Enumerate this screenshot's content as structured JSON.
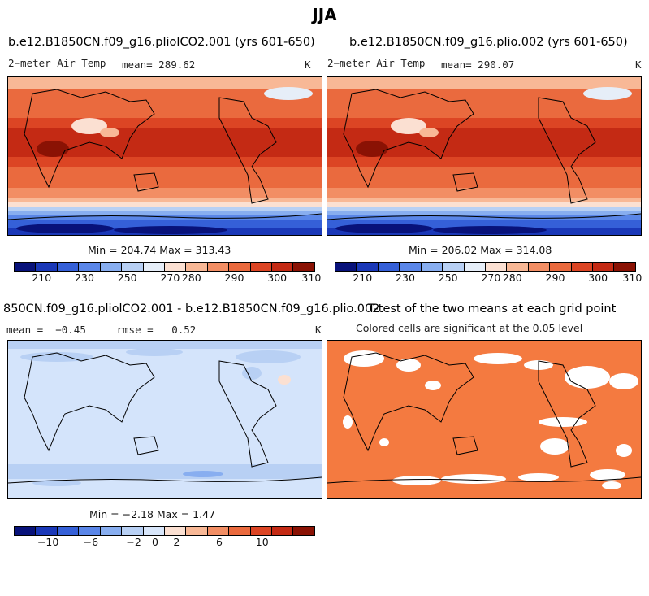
{
  "title": "JJA",
  "panels": [
    {
      "case": "b.e12.B1850CN.f09_g16.pliolCO2.001 (yrs 601-650)",
      "variable": "2−meter Air Temp",
      "mean_label": "mean=",
      "mean_value": "289.62",
      "units": "K",
      "minmax": "Min = 204.74 Max = 313.43",
      "colorbar_ticks": [
        "210",
        "230",
        "250",
        "270",
        "280",
        "290",
        "300",
        "310"
      ]
    },
    {
      "case": "b.e12.B1850CN.f09_g16.plio.002 (yrs 601-650)",
      "variable": "2−meter Air Temp",
      "mean_label": "mean=",
      "mean_value": "290.07",
      "units": "K",
      "minmax": "Min = 206.02 Max = 314.08",
      "colorbar_ticks": [
        "210",
        "230",
        "250",
        "270",
        "280",
        "290",
        "300",
        "310"
      ]
    },
    {
      "case": "850CN.f09_g16.pliolCO2.001 - b.e12.B1850CN.f09_g16.plio.002",
      "mean_label": "mean =",
      "mean_value": "−0.45",
      "rmse_label": "rmse =",
      "rmse_value": "0.52",
      "units": "K",
      "minmax": "Min =  −2.18 Max =   1.47",
      "colorbar_ticks": [
        "−10",
        "−6",
        "−2",
        "0",
        "2",
        "6",
        "10"
      ]
    },
    {
      "title": "T-test of the two means at each grid point",
      "subtitle": "Colored cells are significant at the 0.05 level"
    }
  ],
  "colors": {
    "abs_scale": [
      "#08127a",
      "#1a38b8",
      "#3560d8",
      "#5a86e8",
      "#88aef0",
      "#b8d0f4",
      "#e6eef8",
      "#fbe0d2",
      "#f8b896",
      "#f28e64",
      "#ea6a3e",
      "#dc4524",
      "#c42a14",
      "#8a1204"
    ],
    "diff_scale": [
      "#08127a",
      "#1a38b8",
      "#3560d8",
      "#5a86e8",
      "#88aef0",
      "#b8d0f4",
      "#d8e6fa",
      "#fbe0d2",
      "#f8b896",
      "#f28e64",
      "#ea6a3e",
      "#dc4524",
      "#c42a14",
      "#8a1204"
    ],
    "diff_background": "#d4e4fb",
    "ttest_fill": "#f47a40"
  }
}
